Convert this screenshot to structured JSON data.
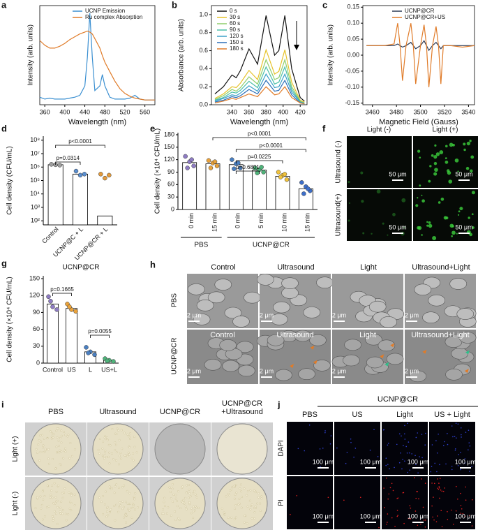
{
  "chart_data": [
    {
      "type": "line",
      "label": "a",
      "xlabel": "Wavelength (nm)",
      "ylabel": "Intensity (arb. units)",
      "legend": "upper right",
      "x": [
        350,
        360,
        370,
        380,
        390,
        400,
        410,
        420,
        430,
        440,
        445,
        450,
        455,
        460,
        470,
        475,
        480,
        490,
        500,
        510,
        520,
        530,
        540,
        550,
        560,
        570,
        580
      ],
      "xlim": [
        350,
        580
      ],
      "ylim": [
        0,
        1.05
      ],
      "xticks": [
        360,
        400,
        440,
        480,
        520,
        560
      ],
      "series": [
        {
          "name": "UCNP Emission",
          "color": "#3a8fd1",
          "values": [
            0.08,
            0.06,
            0.07,
            0.06,
            0.06,
            0.06,
            0.07,
            0.08,
            0.1,
            0.2,
            0.5,
            0.97,
            0.5,
            0.15,
            0.2,
            0.32,
            0.2,
            0.08,
            0.06,
            0.06,
            0.06,
            0.07,
            0.1,
            0.06,
            0.05,
            0.05,
            0.05
          ]
        },
        {
          "name": "Ru complex Absorption",
          "color": "#e07b28",
          "values": [
            0.68,
            0.63,
            0.6,
            0.6,
            0.62,
            0.65,
            0.69,
            0.72,
            0.75,
            0.77,
            0.78,
            0.77,
            0.75,
            0.7,
            0.6,
            0.52,
            0.45,
            0.35,
            0.25,
            0.17,
            0.12,
            0.09,
            0.07,
            0.06,
            0.05,
            0.05,
            0.05
          ]
        }
      ]
    },
    {
      "type": "line",
      "label": "b",
      "xlabel": "Wavelength (nm)",
      "ylabel": "Absorbance (arb. units)",
      "legend": "upper left",
      "x": [
        320,
        330,
        340,
        345,
        350,
        360,
        370,
        380,
        390,
        395,
        402,
        410,
        420,
        425
      ],
      "xlim": [
        316,
        428
      ],
      "ylim": [
        0,
        1.1
      ],
      "xticks": [
        340,
        360,
        380,
        400,
        420
      ],
      "yticks": [
        {
          "value": 0,
          "label": "0.0"
        },
        0.2,
        0.4,
        0.6,
        0.8,
        {
          "value": 1,
          "label": "1.0"
        }
      ],
      "series": [
        {
          "name": "0 s",
          "color": "#111111",
          "values": [
            0.12,
            0.2,
            0.33,
            0.3,
            0.38,
            0.62,
            0.45,
            0.99,
            0.55,
            0.6,
            0.99,
            0.4,
            0.08,
            0.04
          ]
        },
        {
          "name": "30 s",
          "color": "#e6c229",
          "values": [
            0.07,
            0.12,
            0.2,
            0.19,
            0.24,
            0.38,
            0.28,
            0.61,
            0.34,
            0.37,
            0.61,
            0.25,
            0.05,
            0.03
          ]
        },
        {
          "name": "60 s",
          "color": "#8fce6b",
          "values": [
            0.06,
            0.1,
            0.17,
            0.15,
            0.19,
            0.31,
            0.23,
            0.5,
            0.28,
            0.3,
            0.5,
            0.2,
            0.04,
            0.02
          ]
        },
        {
          "name": "90 s",
          "color": "#4bbfa8",
          "values": [
            0.05,
            0.08,
            0.14,
            0.13,
            0.16,
            0.26,
            0.19,
            0.42,
            0.23,
            0.25,
            0.42,
            0.17,
            0.03,
            0.02
          ]
        },
        {
          "name": "120 s",
          "color": "#3aa0c8",
          "values": [
            0.04,
            0.07,
            0.11,
            0.1,
            0.13,
            0.21,
            0.15,
            0.34,
            0.19,
            0.2,
            0.34,
            0.14,
            0.03,
            0.01
          ]
        },
        {
          "name": "150 s",
          "color": "#2d6fb8",
          "values": [
            0.03,
            0.05,
            0.09,
            0.08,
            0.1,
            0.17,
            0.12,
            0.27,
            0.15,
            0.16,
            0.27,
            0.11,
            0.02,
            0.01
          ]
        },
        {
          "name": "180 s",
          "color": "#e07b28",
          "values": [
            0.02,
            0.04,
            0.07,
            0.06,
            0.08,
            0.12,
            0.09,
            0.2,
            0.11,
            0.12,
            0.2,
            0.08,
            0.02,
            0.01
          ]
        }
      ]
    },
    {
      "type": "line",
      "label": "c",
      "xlabel": "Magnetic Field (Gauss)",
      "ylabel": "Intensity (arb. units)",
      "legend": "upper right",
      "x": [
        3455,
        3470,
        3478,
        3481,
        3483,
        3485,
        3488,
        3492,
        3494,
        3496,
        3500,
        3503,
        3505,
        3507,
        3510,
        3513,
        3515,
        3517,
        3519,
        3525,
        3535,
        3545
      ],
      "xlim": [
        3452,
        3545
      ],
      "ylim": [
        -0.155,
        0.155
      ],
      "xticks": [
        3460,
        3480,
        3500,
        3520,
        3540
      ],
      "yticks": [
        -0.15,
        {
          "value": -0.1,
          "label": "-0.10"
        },
        -0.05,
        {
          "value": 0,
          "label": "0.00"
        },
        0.05,
        {
          "value": 0.1,
          "label": "0.10"
        },
        0.15
      ],
      "series": [
        {
          "name": "UCNP@CR",
          "color": "#2b3a55",
          "values": [
            0.03,
            0.03,
            0.03,
            0.035,
            0.03,
            0.025,
            0.03,
            0.04,
            0.03,
            0.02,
            0.03,
            0.045,
            0.03,
            0.015,
            0.03,
            0.04,
            0.03,
            0.02,
            0.03,
            0.03,
            0.03,
            0.03
          ]
        },
        {
          "name": "UCNP@CR+US",
          "color": "#e07b28",
          "values": [
            0.03,
            0.03,
            0.035,
            0.1,
            0.03,
            -0.08,
            0.03,
            0.1,
            0.03,
            -0.09,
            0.03,
            0.095,
            0.03,
            -0.1,
            0.03,
            0.09,
            0.03,
            -0.09,
            0.03,
            0.03,
            0.025,
            0.03
          ]
        }
      ]
    },
    {
      "type": "bar",
      "label": "d",
      "ylabel": "Cell density (CFU/mL)",
      "log": true,
      "color": "#ffffff",
      "categories": [
        "Control",
        "UCNP@C + L",
        "UCNP@CR + L"
      ],
      "values": [
        1500000,
        300000,
        230
      ],
      "points": [
        [
          1600000,
          1500000,
          1400000
        ],
        [
          500000,
          250000,
          300000
        ],
        [
          300000,
          150000,
          250000
        ]
      ],
      "point_colors": [
        "#9e9e9e",
        "#5b8fd0",
        "#e39a3b"
      ],
      "ylim": [
        50,
        200000000
      ],
      "yticks": [
        {
          "value": 100,
          "label": "10²"
        },
        {
          "value": 1000,
          "label": "10³"
        },
        {
          "value": 10000,
          "label": "10⁴"
        },
        {
          "value": 100000,
          "label": "10⁵"
        },
        {
          "value": 1000000,
          "label": "10⁶"
        },
        {
          "value": 10000000,
          "label": "10⁷"
        },
        {
          "value": 100000000,
          "label": "10⁸"
        }
      ],
      "annotations": [
        "p=0.0314",
        "p<0.0001"
      ]
    },
    {
      "type": "bar",
      "label": "e",
      "ylabel": "Cell density (×10⁴ CFU/mL)",
      "color": "#ffffff",
      "categories": [
        "0 min",
        "15 min",
        "0 min",
        "5 min",
        "10 min",
        "15 min"
      ],
      "values": [
        113,
        110,
        108,
        95,
        80,
        50
      ],
      "points": [
        [
          128,
          115,
          105,
          100,
          120
        ],
        [
          118,
          112,
          105,
          100,
          115
        ],
        [
          120,
          110,
          100,
          98,
          112
        ],
        [
          100,
          96,
          90,
          88,
          102
        ],
        [
          90,
          82,
          72,
          78,
          85
        ],
        [
          65,
          55,
          45,
          38,
          50
        ]
      ],
      "point_colors": [
        "#8e7cc3",
        "#e9a23b",
        "#4a7fc1",
        "#4fb37a",
        "#f0c23b",
        "#3d6ec9"
      ],
      "groups": [
        "PBS",
        "UCNP@CR"
      ],
      "ylim": [
        0,
        185
      ],
      "yticks": [
        0,
        30,
        60,
        90,
        120,
        150,
        180
      ],
      "annotations": [
        "p<0.0001",
        "p<0.0001",
        "p=0.0225",
        "p=0.6801"
      ]
    },
    {
      "type": "bar",
      "label": "g",
      "title": "UCNP@CR",
      "ylabel": "Cell density (×10⁴ CFU/mL)",
      "color": "#ffffff",
      "categories": [
        "Control",
        "US",
        "L",
        "US+L"
      ],
      "values": [
        105,
        97,
        20,
        5
      ],
      "points": [
        [
          118,
          100,
          95,
          110
        ],
        [
          105,
          95,
          92,
          100
        ],
        [
          28,
          20,
          15,
          18
        ],
        [
          8,
          5,
          3,
          4
        ]
      ],
      "point_colors": [
        "#8e7cc3",
        "#e9a23b",
        "#4a7fc1",
        "#4fb37a"
      ],
      "ylim": [
        0,
        155
      ],
      "yticks": [
        0,
        30,
        60,
        90,
        120,
        150
      ],
      "annotations": [
        "p=0.1665",
        "p=0.0055"
      ]
    }
  ],
  "panels": {
    "f": {
      "label": "f",
      "columns": [
        "Light (-)",
        "Light (+)"
      ],
      "rows": [
        "Ultrasound (-)",
        "Ultrasound(+)"
      ],
      "scale_bars": [
        "50 μm",
        "50 μm",
        "50 μm",
        "50 μm"
      ]
    },
    "h": {
      "label": "h",
      "columns": [
        "Control",
        "Ultrasound",
        "Light",
        "Ultrasound+Light"
      ],
      "rows": [
        "PBS",
        "UCNP@CR"
      ],
      "inner_columns": [
        "Control",
        "Ultrasound",
        "Light",
        "Ultrasound+Light"
      ],
      "scale_bars": [
        "2 μm",
        "2 μm",
        "2 μm",
        "2 μm",
        "2 μm",
        "2 μm",
        "2 μm",
        "2 μm"
      ]
    },
    "i": {
      "label": "i",
      "columns": [
        [
          "PBS"
        ],
        [
          "Ultrasound"
        ],
        [
          "UCNP@CR"
        ],
        [
          "UCNP@CR",
          "+Ultrasound"
        ]
      ],
      "rows": [
        "Light (+)",
        "Light (-)"
      ]
    },
    "j": {
      "label": "j",
      "group": "UCNP@CR",
      "columns": [
        "PBS",
        "US",
        "Light",
        "US + Light"
      ],
      "rows": [
        "DAPI",
        "PI"
      ],
      "scale_bars": [
        "100 μm",
        "100 μm",
        "100 μm",
        "100 μm",
        "100 μm",
        "100 μm",
        "100 μm",
        "100 μm"
      ]
    }
  }
}
